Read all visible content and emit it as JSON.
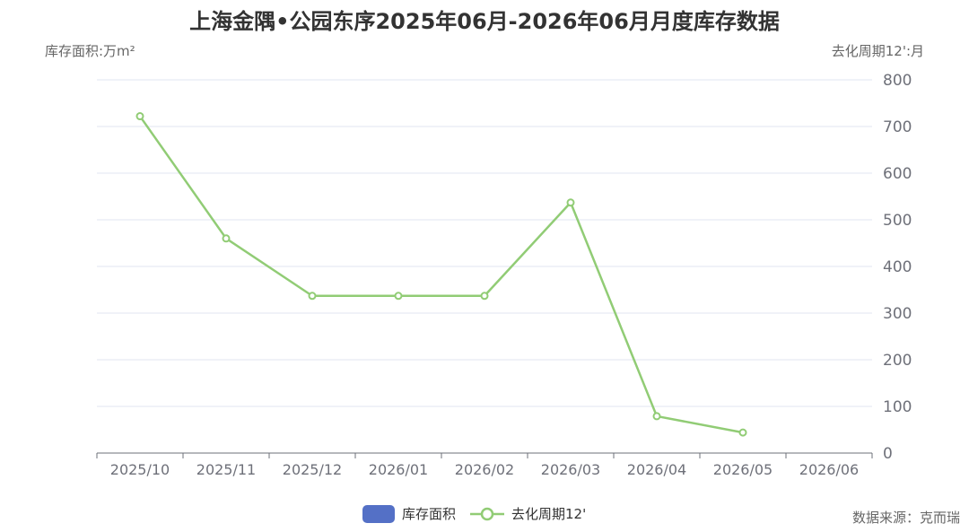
{
  "title": "上海金隅•公园东序2025年06月-2026年06月月度库存数据",
  "colors": {
    "bar": "#5470c6",
    "line": "#91cc75",
    "grid": "#e0e6f1",
    "axis": "#6e7079"
  },
  "source": "数据来源：克而瑞",
  "chart_data": {
    "type": "line",
    "categories": [
      "2025/10",
      "2025/11",
      "2025/12",
      "2026/01",
      "2026/02",
      "2026/03",
      "2026/04",
      "2026/05",
      "2026/06"
    ],
    "series": [
      {
        "name": "库存面积",
        "type": "bar",
        "axis": "left",
        "values": [
          null,
          null,
          null,
          null,
          null,
          null,
          null,
          null,
          null
        ]
      },
      {
        "name": "去化周期12'",
        "type": "line",
        "axis": "right",
        "values": [
          722,
          460,
          337,
          337,
          337,
          537,
          79,
          44,
          null
        ]
      }
    ],
    "ylabel_left": "库存面积:万m²",
    "ylabel_right": "去化周期12':月",
    "ylim_right": [
      0,
      800
    ],
    "yticks_right": [
      0,
      100,
      200,
      300,
      400,
      500,
      600,
      700,
      800
    ],
    "grid": true,
    "legend": "bottom-center"
  }
}
